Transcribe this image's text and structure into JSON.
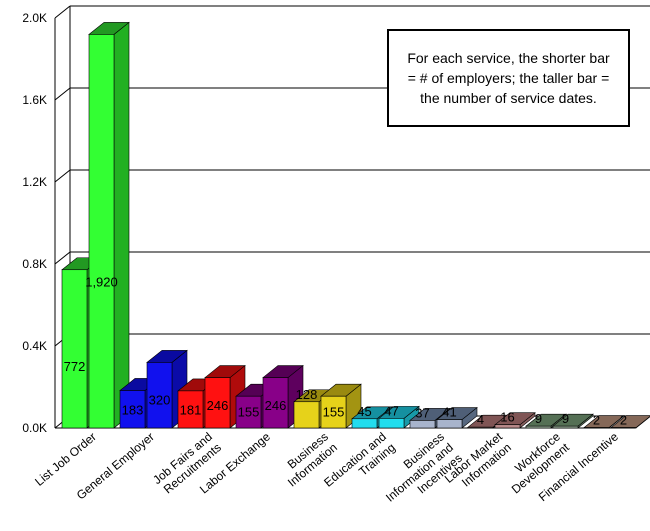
{
  "chart_data": {
    "type": "bar",
    "categories": [
      [
        "List Job Order"
      ],
      [
        "General Employer"
      ],
      [
        "Job Fairs and",
        "Recruitments"
      ],
      [
        "Labor Exchange"
      ],
      [
        "Business",
        "Information"
      ],
      [
        "Education and",
        "Training"
      ],
      [
        "Business",
        "Information and",
        "Incentives"
      ],
      [
        "Labor Market",
        "Information"
      ],
      [
        "Workforce",
        "Development"
      ],
      [
        "Financial Incentive"
      ]
    ],
    "series": [
      {
        "values": [
          772,
          183,
          181,
          155,
          128,
          45,
          37,
          4,
          9,
          2
        ]
      },
      {
        "values": [
          1920,
          320,
          246,
          246,
          155,
          47,
          41,
          16,
          9,
          2
        ]
      }
    ],
    "value_labels": [
      [
        "772",
        "183",
        "181",
        "155",
        "128",
        "45",
        "37",
        "4",
        "9",
        "2"
      ],
      [
        "1,920",
        "320",
        "246",
        "246",
        "155",
        "47",
        "41",
        "16",
        "9",
        "2"
      ]
    ],
    "ylim": [
      0,
      2000
    ],
    "yticks": [
      0,
      400,
      800,
      1200,
      1600,
      2000
    ],
    "ytick_labels": [
      "0.0K",
      "0.4K",
      "0.8K",
      "1.2K",
      "1.6K",
      "2.0K"
    ],
    "grid": true,
    "colors": [
      {
        "front": "#33ff33",
        "side": "#22b022",
        "top": "#229922"
      },
      {
        "front": "#1111ee",
        "side": "#0b0ba8",
        "top": "#0a0aa0"
      },
      {
        "front": "#ff1111",
        "side": "#b00b0b",
        "top": "#a00a0a"
      },
      {
        "front": "#880088",
        "side": "#5e005e",
        "top": "#550055"
      },
      {
        "front": "#e6d21a",
        "side": "#a39412",
        "top": "#998a10"
      },
      {
        "front": "#22ddee",
        "side": "#189aa8",
        "top": "#1590a0"
      },
      {
        "front": "#a8b4cc",
        "side": "#56677f",
        "top": "#4f5f77"
      },
      {
        "front": "#b88a8a",
        "side": "#8a5f5f",
        "top": "#805555"
      },
      {
        "front": "#9db39d",
        "side": "#5f7a5f",
        "top": "#557055"
      },
      {
        "front": "#c8a890",
        "side": "#8f7260",
        "top": "#856858"
      }
    ]
  },
  "annotation": {
    "text": "For each service, the shorter bar = # of employers; the taller bar = the number of service dates."
  }
}
